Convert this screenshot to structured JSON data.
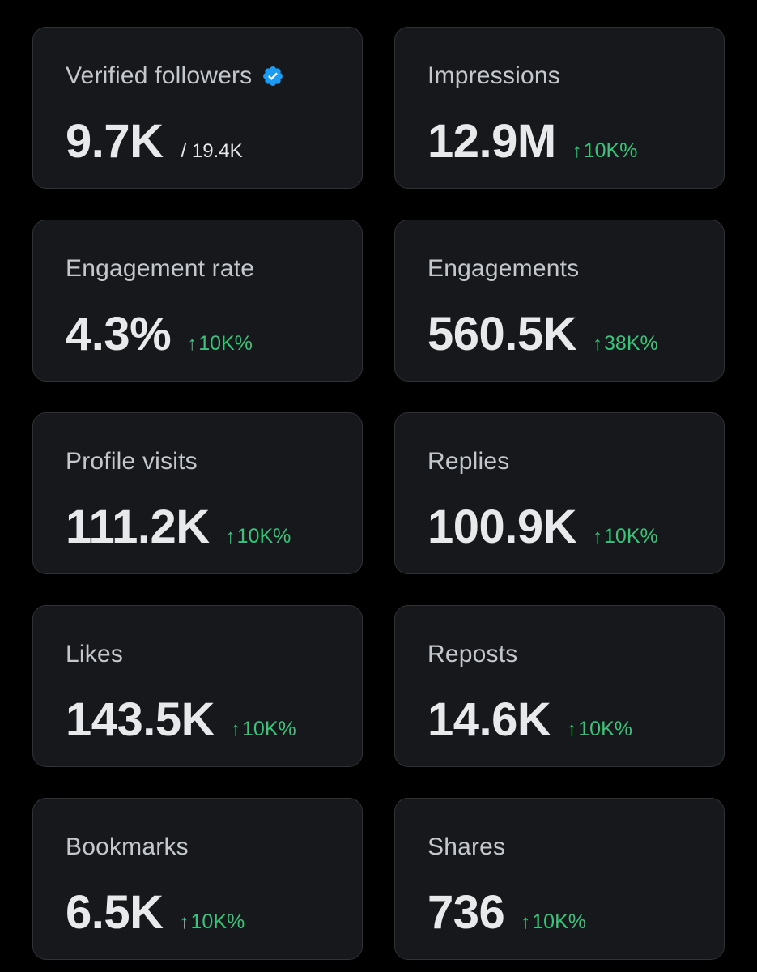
{
  "colors": {
    "background": "#000000",
    "card": "#16181c",
    "card_border": "#2f3336",
    "label": "#c4c8cc",
    "value": "#e7e9ea",
    "positive": "#34c77b",
    "verified": "#1d9bf0"
  },
  "icons": {
    "verified": "verified-badge-icon",
    "change": "arrow-up-icon"
  },
  "metrics": {
    "verified_followers": {
      "label": "Verified followers",
      "value": "9.7K",
      "total": "/ 19.4K"
    },
    "impressions": {
      "label": "Impressions",
      "value": "12.9M",
      "arrow": "↑",
      "change": "10K%"
    },
    "engagement_rate": {
      "label": "Engagement rate",
      "value": "4.3%",
      "arrow": "↑",
      "change": "10K%"
    },
    "engagements": {
      "label": "Engagements",
      "value": "560.5K",
      "arrow": "↑",
      "change": "38K%"
    },
    "profile_visits": {
      "label": "Profile visits",
      "value": "111.2K",
      "arrow": "↑",
      "change": "10K%"
    },
    "replies": {
      "label": "Replies",
      "value": "100.9K",
      "arrow": "↑",
      "change": "10K%"
    },
    "likes": {
      "label": "Likes",
      "value": "143.5K",
      "arrow": "↑",
      "change": "10K%"
    },
    "reposts": {
      "label": "Reposts",
      "value": "14.6K",
      "arrow": "↑",
      "change": "10K%"
    },
    "bookmarks": {
      "label": "Bookmarks",
      "value": "6.5K",
      "arrow": "↑",
      "change": "10K%"
    },
    "shares": {
      "label": "Shares",
      "value": "736",
      "arrow": "↑",
      "change": "10K%"
    }
  }
}
